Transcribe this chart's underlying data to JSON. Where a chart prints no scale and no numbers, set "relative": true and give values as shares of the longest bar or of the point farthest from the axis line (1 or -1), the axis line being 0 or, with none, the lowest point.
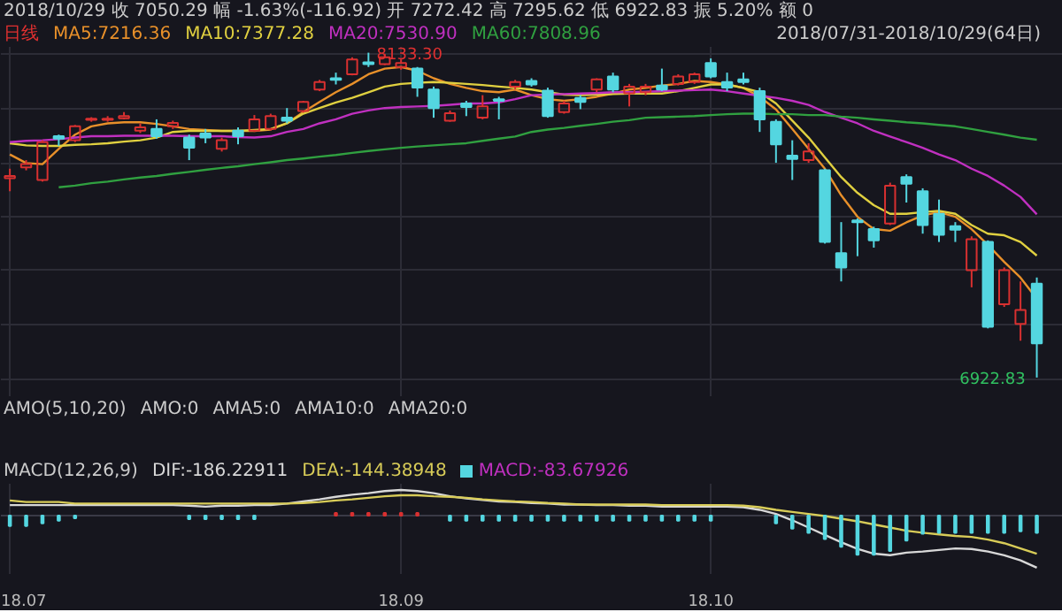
{
  "chart_data": [
    {
      "type": "candlestick",
      "title": "2018/10/29 收 7050.29 幅 -1.63%(-116.92) 开 7272.42 高 7295.62 低 6922.83 振 5.20% 额 0",
      "legend_title": "日线",
      "annotations": [
        "2018/07/31-2018/10/29(64日)",
        "8133.30",
        "6922.83"
      ],
      "categories": [
        "18.07",
        null,
        null,
        null,
        null,
        null,
        null,
        null,
        null,
        null,
        null,
        null,
        null,
        null,
        null,
        null,
        null,
        null,
        null,
        null,
        null,
        null,
        null,
        null,
        "18.09",
        null,
        null,
        null,
        null,
        null,
        null,
        null,
        null,
        null,
        null,
        null,
        null,
        null,
        null,
        null,
        null,
        null,
        null,
        "18.10",
        null,
        null,
        null,
        null,
        null,
        null,
        null,
        null,
        null,
        null,
        null,
        null,
        null,
        null,
        null,
        null,
        null,
        null,
        null,
        null
      ],
      "ohlc": [
        [
          7666,
          7701,
          7617,
          7674
        ],
        [
          7706,
          7733,
          7695,
          7718
        ],
        [
          7659,
          7807,
          7653,
          7800
        ],
        [
          7822,
          7828,
          7786,
          7813
        ],
        [
          7807,
          7864,
          7800,
          7859
        ],
        [
          7883,
          7893,
          7876,
          7887
        ],
        [
          7883,
          7897,
          7876,
          7887
        ],
        [
          7889,
          7912,
          7885,
          7897
        ],
        [
          7843,
          7870,
          7834,
          7855
        ],
        [
          7849,
          7885,
          7813,
          7822
        ],
        [
          7859,
          7880,
          7849,
          7872
        ],
        [
          7817,
          7828,
          7733,
          7779
        ],
        [
          7832,
          7849,
          7796,
          7817
        ],
        [
          7775,
          7817,
          7765,
          7807
        ],
        [
          7843,
          7855,
          7792,
          7822
        ],
        [
          7843,
          7901,
          7838,
          7885
        ],
        [
          7849,
          7906,
          7843,
          7897
        ],
        [
          7891,
          7927,
          7870,
          7880
        ],
        [
          7916,
          7954,
          7910,
          7950
        ],
        [
          7996,
          8032,
          7990,
          8024
        ],
        [
          8038,
          8059,
          8015,
          8032
        ],
        [
          8053,
          8116,
          8049,
          8108
        ],
        [
          8097,
          8133.3,
          8080,
          8091
        ],
        [
          8091,
          8129,
          8087,
          8116
        ],
        [
          8080,
          8108,
          8070,
          8095
        ],
        [
          8074,
          8080,
          7969,
          8003
        ],
        [
          7996,
          8007,
          7891,
          7927
        ],
        [
          7880,
          7918,
          7876,
          7908
        ],
        [
          7944,
          7954,
          7897,
          7931
        ],
        [
          7891,
          7975,
          7885,
          7933
        ],
        [
          7960,
          7969,
          7885,
          7954
        ],
        [
          8007,
          8032,
          7996,
          8024
        ],
        [
          8028,
          8038,
          8007,
          8015
        ],
        [
          7992,
          8003,
          7891,
          7897
        ],
        [
          7912,
          7954,
          7906,
          7944
        ],
        [
          7965,
          7975,
          7923,
          7950
        ],
        [
          7996,
          8038,
          7986,
          8034
        ],
        [
          8045,
          8059,
          7986,
          7996
        ],
        [
          7982,
          8017,
          7933,
          8007
        ],
        [
          7986,
          8017,
          7975,
          8007
        ],
        [
          8011,
          8074,
          7990,
          7996
        ],
        [
          8017,
          8053,
          8011,
          8045
        ],
        [
          8024,
          8059,
          8017,
          8053
        ],
        [
          8095,
          8112,
          8038,
          8045
        ],
        [
          8024,
          8059,
          7990,
          8003
        ],
        [
          8034,
          8059,
          8015,
          8024
        ],
        [
          7990,
          8003,
          7838,
          7885
        ],
        [
          7876,
          7885,
          7723,
          7792
        ],
        [
          7750,
          7807,
          7659,
          7737
        ],
        [
          7733,
          7796,
          7723,
          7765
        ],
        [
          7695,
          7701,
          7422,
          7428
        ],
        [
          7386,
          7502,
          7281,
          7333
        ],
        [
          7508,
          7516,
          7375,
          7502
        ],
        [
          7476,
          7485,
          7407,
          7434
        ],
        [
          7497,
          7649,
          7491,
          7638
        ],
        [
          7670,
          7680,
          7575,
          7645
        ],
        [
          7617,
          7628,
          7459,
          7491
        ],
        [
          7533,
          7586,
          7428,
          7455
        ],
        [
          7487,
          7502,
          7428,
          7474
        ],
        [
          7323,
          7449,
          7259,
          7438
        ],
        [
          7428,
          7434,
          7106,
          7112
        ],
        [
          7196,
          7333,
          7186,
          7323
        ],
        [
          7123,
          7281,
          7060,
          7175
        ],
        [
          7272.42,
          7295.62,
          6922.83,
          7050.29
        ]
      ],
      "colors": [
        "#d83030",
        "#d83030",
        "#d83030",
        "#54d6e0",
        "#d83030",
        "#d83030",
        "#d83030",
        "#d83030",
        "#d83030",
        "#54d6e0",
        "#d83030",
        "#54d6e0",
        "#54d6e0",
        "#d83030",
        "#54d6e0",
        "#d83030",
        "#d83030",
        "#54d6e0",
        "#d83030",
        "#d83030",
        "#54d6e0",
        "#d83030",
        "#54d6e0",
        "#d83030",
        "#d83030",
        "#54d6e0",
        "#54d6e0",
        "#d83030",
        "#54d6e0",
        "#d83030",
        "#54d6e0",
        "#d83030",
        "#54d6e0",
        "#54d6e0",
        "#d83030",
        "#54d6e0",
        "#d83030",
        "#54d6e0",
        "#d83030",
        "#d83030",
        "#54d6e0",
        "#d83030",
        "#d83030",
        "#54d6e0",
        "#54d6e0",
        "#54d6e0",
        "#54d6e0",
        "#54d6e0",
        "#54d6e0",
        "#d83030",
        "#54d6e0",
        "#54d6e0",
        "#54d6e0",
        "#54d6e0",
        "#d83030",
        "#54d6e0",
        "#54d6e0",
        "#54d6e0",
        "#54d6e0",
        "#d83030",
        "#54d6e0",
        "#d83030",
        "#d83030",
        "#54d6e0"
      ],
      "series": [
        {
          "name": "MA5:7216.36",
          "type": "line",
          "color": "#e8902a",
          "values": [
            7754,
            7722,
            7718,
            7775,
            7828,
            7859,
            7870,
            7874,
            7874,
            7868,
            7859,
            7849,
            7845,
            7842,
            7842,
            7842,
            7847,
            7870,
            7912,
            7950,
            7986,
            8017,
            8053,
            8074,
            8080,
            8066,
            8038,
            8017,
            8002,
            7990,
            7986,
            7996,
            7975,
            7960,
            7954,
            7960,
            7969,
            7981,
            7996,
            8002,
            8011,
            8017,
            8028,
            8024,
            8015,
            8002,
            7969,
            7922,
            7849,
            7775,
            7701,
            7602,
            7522,
            7476,
            7470,
            7501,
            7527,
            7539,
            7522,
            7476,
            7417,
            7354,
            7295,
            7216.36
          ]
        },
        {
          "name": "MA10:7377.28",
          "type": "line",
          "color": "#e0d040",
          "values": [
            7796,
            7788,
            7786,
            7786,
            7790,
            7792,
            7796,
            7802,
            7807,
            7817,
            7838,
            7842,
            7842,
            7842,
            7842,
            7845,
            7849,
            7870,
            7906,
            7927,
            7948,
            7965,
            7986,
            8007,
            8017,
            8021,
            8024,
            8021,
            8017,
            8013,
            8007,
            8002,
            7996,
            7986,
            7977,
            7975,
            7977,
            7979,
            7981,
            7981,
            7981,
            7990,
            8002,
            8015,
            8015,
            8002,
            7986,
            7944,
            7880,
            7817,
            7743,
            7670,
            7611,
            7565,
            7533,
            7533,
            7539,
            7544,
            7533,
            7491,
            7459,
            7453,
            7428,
            7377.28
          ]
        },
        {
          "name": "MA20:7530.90",
          "type": "line",
          "color": "#c030c0",
          "values": [
            7800,
            7805,
            7807,
            7811,
            7817,
            7822,
            7822,
            7824,
            7824,
            7824,
            7824,
            7822,
            7822,
            7822,
            7819,
            7817,
            7822,
            7838,
            7849,
            7870,
            7885,
            7906,
            7918,
            7927,
            7931,
            7933,
            7935,
            7939,
            7944,
            7944,
            7948,
            7960,
            7975,
            7977,
            7979,
            7981,
            7983,
            7986,
            7986,
            7988,
            7990,
            7992,
            7994,
            7996,
            7990,
            7981,
            7973,
            7965,
            7954,
            7939,
            7912,
            7891,
            7870,
            7842,
            7821,
            7800,
            7779,
            7754,
            7733,
            7701,
            7674,
            7638,
            7596,
            7530.9
          ]
        },
        {
          "name": "MA60:7808.96",
          "type": "line",
          "color": "#30a040",
          "values": [
            null,
            null,
            null,
            7632,
            7638,
            7647,
            7653,
            7661,
            7668,
            7674,
            7682,
            7689,
            7697,
            7704,
            7710,
            7718,
            7725,
            7733,
            7739,
            7746,
            7752,
            7760,
            7767,
            7773,
            7779,
            7784,
            7788,
            7792,
            7796,
            7805,
            7813,
            7821,
            7838,
            7847,
            7853,
            7861,
            7868,
            7876,
            7882,
            7891,
            7893,
            7895,
            7897,
            7901,
            7904,
            7906,
            7906,
            7904,
            7904,
            7901,
            7901,
            7895,
            7891,
            7885,
            7880,
            7874,
            7870,
            7864,
            7859,
            7849,
            7838,
            7828,
            7817,
            7808.96
          ]
        }
      ],
      "ylim": [
        6850,
        8155
      ],
      "yticks": [
        {
          "value": 8129,
          "label": null
        },
        {
          "value": 7927,
          "label": null
        },
        {
          "value": 7723,
          "label": null
        },
        {
          "value": 7523,
          "label": null
        },
        {
          "value": 7323,
          "label": null
        },
        {
          "value": 7123,
          "label": null
        },
        {
          "value": 6916,
          "label": null
        }
      ],
      "grid": true,
      "legend": "top left",
      "tick_labels": false
    },
    {
      "type": "other",
      "title": "AMO(5,10,20)",
      "annotations": [
        "AMO:0",
        "AMA5:0",
        "AMA10:0",
        "AMA20:0"
      ]
    },
    {
      "type": "line",
      "title": "MACD(12,26,9)",
      "relative": true,
      "categories": [
        "18.07",
        null,
        null,
        null,
        null,
        null,
        null,
        null,
        null,
        null,
        null,
        null,
        null,
        null,
        null,
        null,
        null,
        null,
        null,
        null,
        null,
        null,
        null,
        null,
        "18.09",
        null,
        null,
        null,
        null,
        null,
        null,
        null,
        null,
        null,
        null,
        null,
        null,
        null,
        null,
        null,
        null,
        null,
        null,
        "18.10",
        null,
        null,
        null,
        null,
        null,
        null,
        null,
        null,
        null,
        null,
        null,
        null,
        null,
        null,
        null,
        null,
        null,
        null,
        null,
        null
      ],
      "series": [
        {
          "name": "DIF:-186.22911",
          "color": "#d8d8d8",
          "values": [
            0.2,
            0.2,
            0.2,
            0.2,
            0.2,
            0.2,
            0.2,
            0.2,
            0.2,
            0.2,
            0.2,
            0.19,
            0.17,
            0.19,
            0.19,
            0.2,
            0.2,
            0.23,
            0.27,
            0.31,
            0.36,
            0.4,
            0.43,
            0.47,
            0.49,
            0.47,
            0.43,
            0.37,
            0.33,
            0.3,
            0.27,
            0.26,
            0.24,
            0.23,
            0.21,
            0.21,
            0.2,
            0.2,
            0.19,
            0.19,
            0.17,
            0.17,
            0.17,
            0.17,
            0.17,
            0.16,
            0.11,
            0.03,
            -0.09,
            -0.23,
            -0.37,
            -0.51,
            -0.64,
            -0.73,
            -0.76,
            -0.71,
            -0.69,
            -0.66,
            -0.63,
            -0.64,
            -0.69,
            -0.76,
            -0.86,
            -1
          ]
        },
        {
          "name": "DEA:-144.38948",
          "color": "#d8cc58",
          "values": [
            0.29,
            0.26,
            0.26,
            0.26,
            0.23,
            0.23,
            0.23,
            0.23,
            0.23,
            0.23,
            0.23,
            0.23,
            0.23,
            0.23,
            0.23,
            0.23,
            0.23,
            0.23,
            0.24,
            0.26,
            0.29,
            0.31,
            0.34,
            0.37,
            0.39,
            0.39,
            0.37,
            0.36,
            0.34,
            0.31,
            0.29,
            0.27,
            0.26,
            0.24,
            0.23,
            0.21,
            0.21,
            0.21,
            0.21,
            0.21,
            0.2,
            0.2,
            0.2,
            0.2,
            0.2,
            0.19,
            0.16,
            0.11,
            0.07,
            0.03,
            -0.01,
            -0.06,
            -0.11,
            -0.17,
            -0.23,
            -0.29,
            -0.33,
            -0.36,
            -0.39,
            -0.41,
            -0.46,
            -0.53,
            -0.63,
            -0.73
          ]
        },
        {
          "name": "MACD:-83.67926",
          "type": "bar",
          "color": "#c030c0",
          "values": [
            -0.2,
            -0.2,
            -0.15,
            -0.1,
            -0.05,
            null,
            null,
            null,
            null,
            null,
            null,
            -0.07,
            -0.07,
            -0.07,
            -0.07,
            -0.07,
            null,
            null,
            null,
            null,
            0.05,
            0.05,
            0.05,
            0.05,
            0.05,
            0.05,
            null,
            -0.1,
            -0.1,
            -0.1,
            -0.1,
            -0.1,
            -0.1,
            -0.1,
            -0.1,
            -0.1,
            -0.1,
            -0.1,
            -0.1,
            -0.1,
            -0.1,
            -0.1,
            -0.1,
            -0.1,
            null,
            null,
            null,
            -0.15,
            -0.25,
            -0.33,
            -0.45,
            -0.6,
            -0.75,
            -0.75,
            -0.68,
            -0.48,
            -0.35,
            -0.33,
            -0.33,
            -0.33,
            -0.33,
            -0.33,
            -0.3,
            -0.33
          ],
          "colors": [
            "#54d6e0",
            "#54d6e0",
            "#54d6e0",
            "#54d6e0",
            "#54d6e0",
            null,
            null,
            null,
            null,
            null,
            null,
            "#54d6e0",
            "#54d6e0",
            "#54d6e0",
            "#54d6e0",
            "#54d6e0",
            null,
            null,
            null,
            null,
            "#d83030",
            "#d83030",
            "#d83030",
            "#d83030",
            "#d83030",
            "#d83030",
            null,
            "#54d6e0",
            "#54d6e0",
            "#54d6e0",
            "#54d6e0",
            "#54d6e0",
            "#54d6e0",
            "#54d6e0",
            "#54d6e0",
            "#54d6e0",
            "#54d6e0",
            "#54d6e0",
            "#54d6e0",
            "#54d6e0",
            "#54d6e0",
            "#54d6e0",
            "#54d6e0",
            "#54d6e0",
            null,
            null,
            null,
            "#54d6e0",
            "#54d6e0",
            "#54d6e0",
            "#54d6e0",
            "#54d6e0",
            "#54d6e0",
            "#54d6e0",
            "#54d6e0",
            "#54d6e0",
            "#54d6e0",
            "#54d6e0",
            "#54d6e0",
            "#54d6e0",
            "#54d6e0",
            "#54d6e0",
            "#54d6e0",
            "#54d6e0"
          ]
        }
      ],
      "grid": "x",
      "legend": "top left",
      "tick_labels": "x"
    }
  ]
}
